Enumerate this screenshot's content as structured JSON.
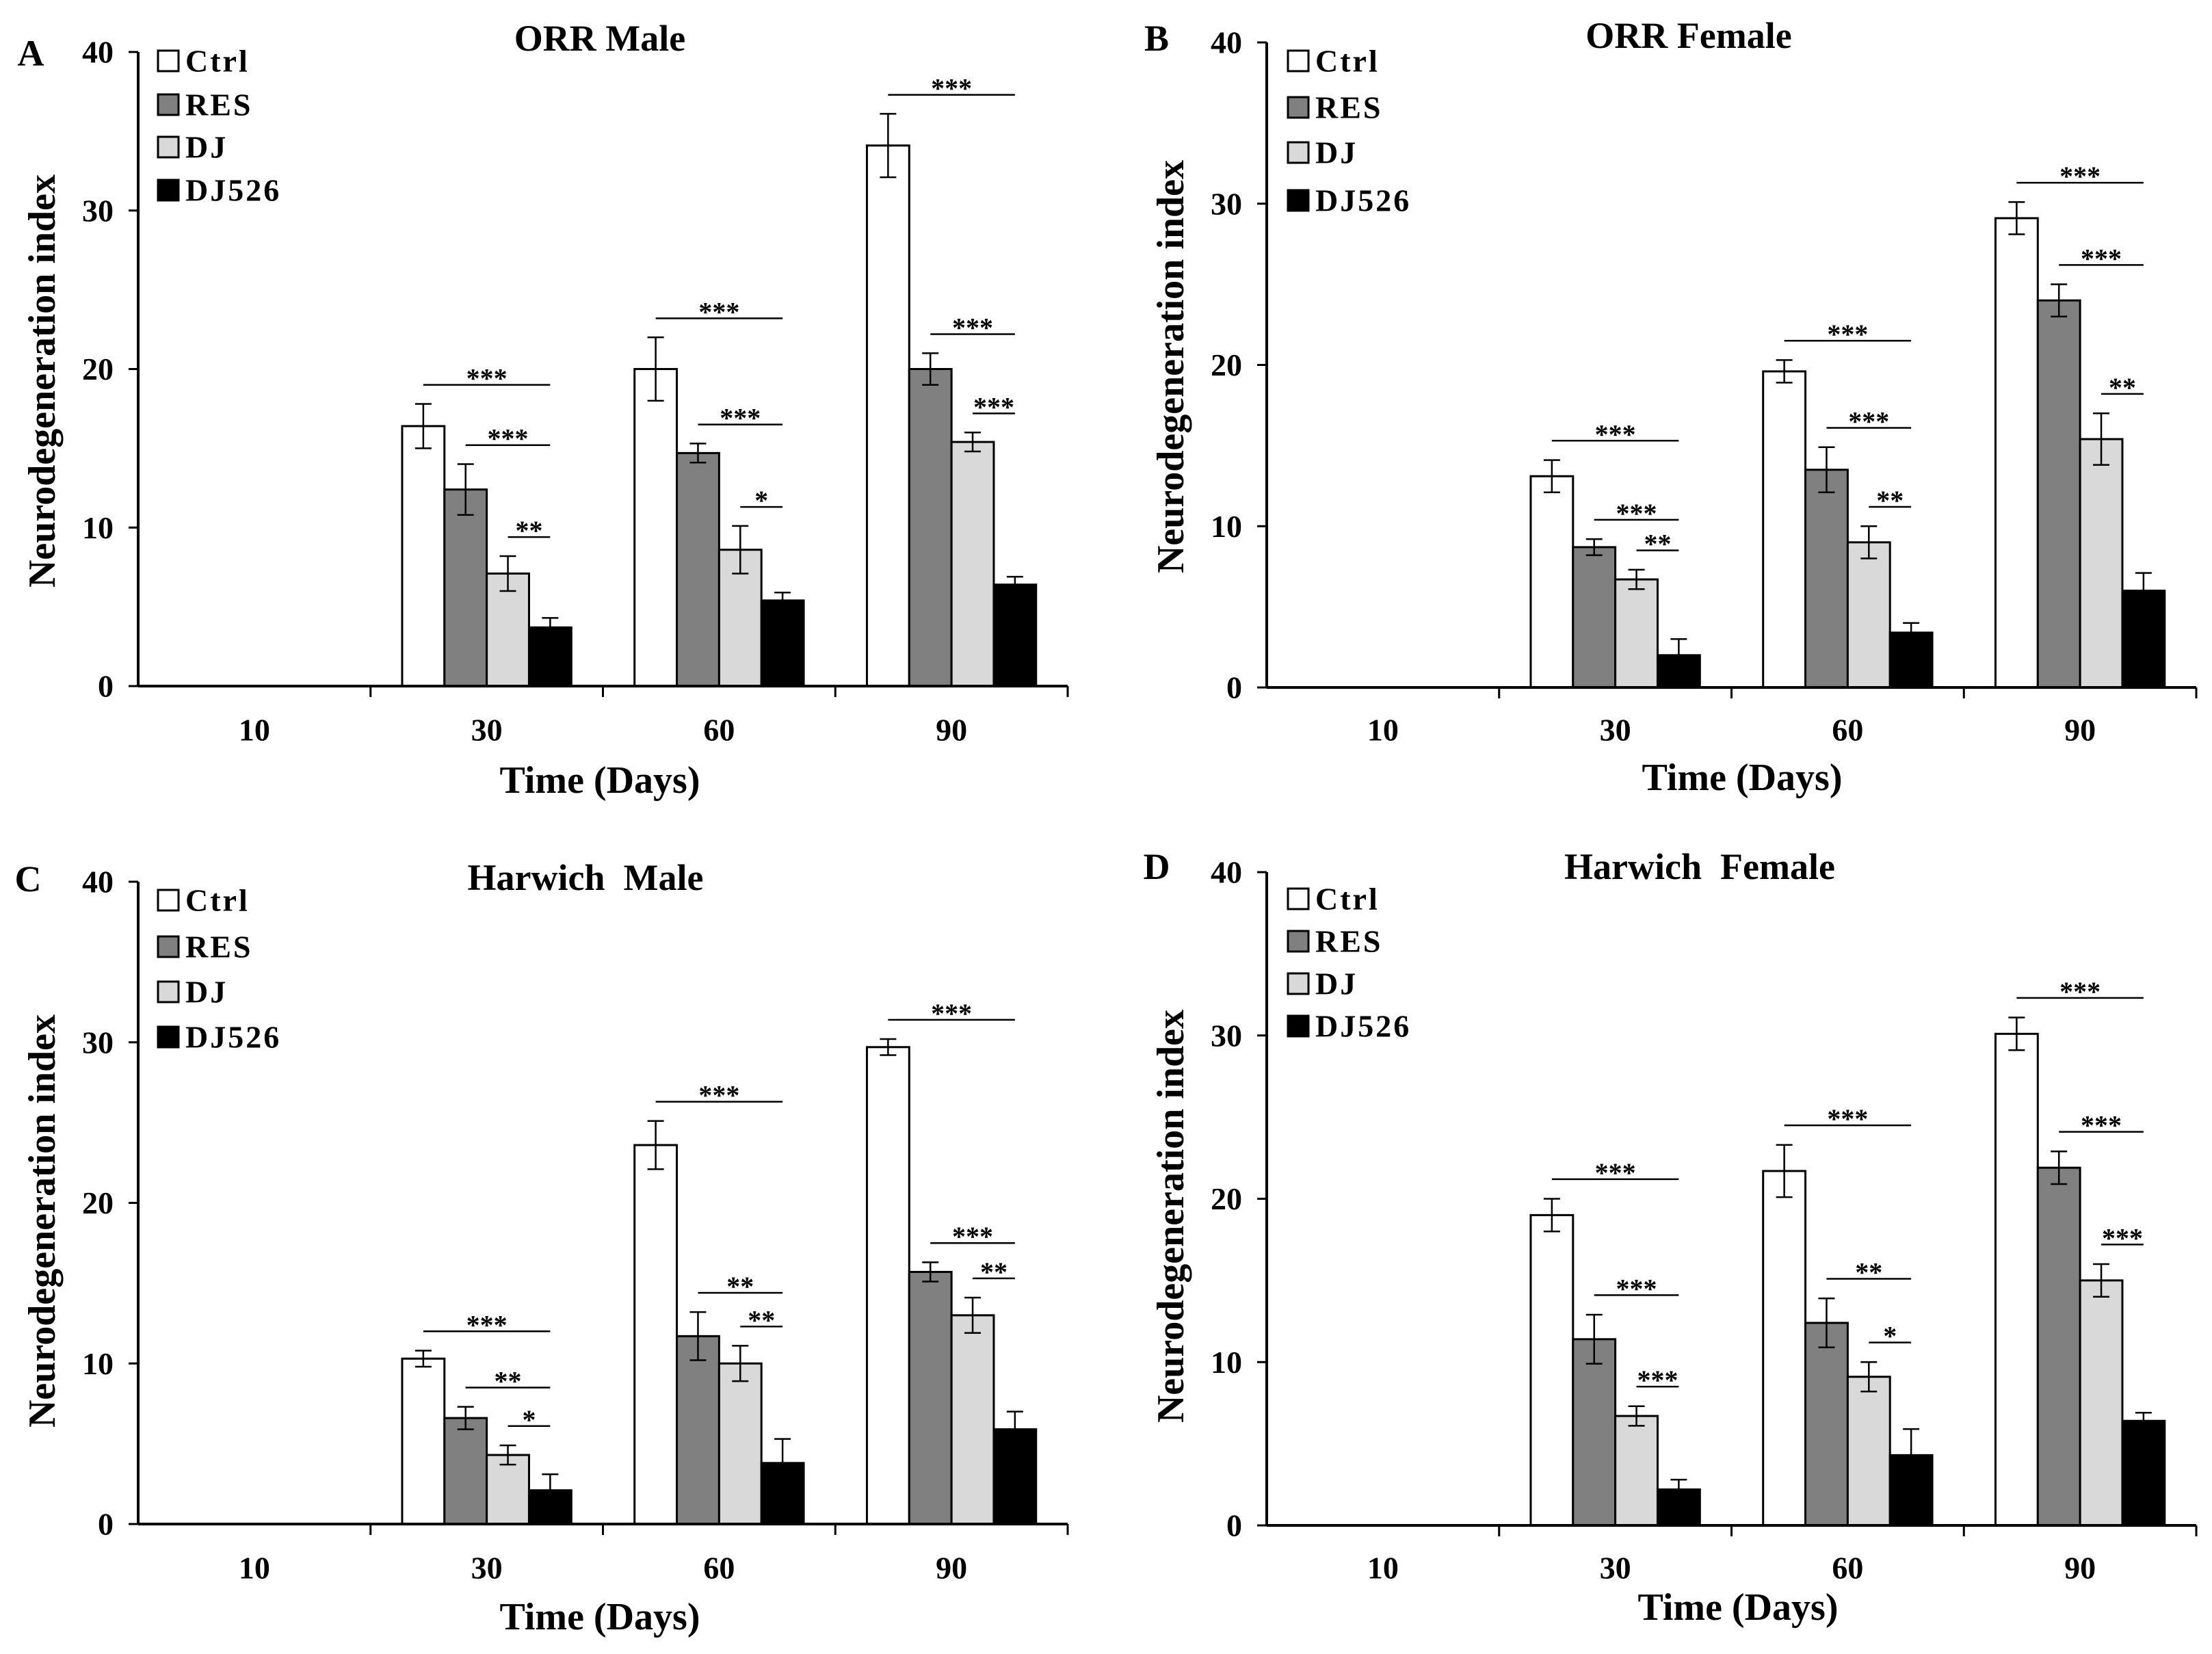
{
  "chart_data": [
    {
      "panel": "A",
      "type": "bar",
      "title": "ORR Male",
      "xlabel": "Time (Days)",
      "ylabel": "Neurodegeneration index",
      "categories": [
        "10",
        "30",
        "60",
        "90"
      ],
      "ylim": [
        0,
        40
      ],
      "yticks": [
        0,
        10,
        20,
        30,
        40
      ],
      "series": [
        {
          "name": "Ctrl",
          "color": "#ffffff",
          "values": [
            0,
            16.4,
            20.0,
            34.1
          ],
          "errors": [
            0,
            1.4,
            2.0,
            2.0
          ]
        },
        {
          "name": "RES",
          "color": "#808080",
          "values": [
            0,
            12.4,
            14.7,
            20.0
          ],
          "errors": [
            0,
            1.6,
            0.6,
            1.0
          ]
        },
        {
          "name": "DJ",
          "color": "#d9d9d9",
          "values": [
            0,
            7.1,
            8.6,
            15.4
          ],
          "errors": [
            0,
            1.1,
            1.5,
            0.6
          ]
        },
        {
          "name": "DJ526",
          "color": "#000000",
          "values": [
            0,
            3.7,
            5.4,
            6.4
          ],
          "errors": [
            0,
            0.6,
            0.5,
            0.5
          ]
        }
      ],
      "significance": [
        {
          "category_index": 1,
          "from_series": 0,
          "to_series": 3,
          "label": "***"
        },
        {
          "category_index": 1,
          "from_series": 1,
          "to_series": 3,
          "label": "***"
        },
        {
          "category_index": 1,
          "from_series": 2,
          "to_series": 3,
          "label": "**"
        },
        {
          "category_index": 2,
          "from_series": 0,
          "to_series": 3,
          "label": "***"
        },
        {
          "category_index": 2,
          "from_series": 1,
          "to_series": 3,
          "label": "***"
        },
        {
          "category_index": 2,
          "from_series": 2,
          "to_series": 3,
          "label": "*"
        },
        {
          "category_index": 3,
          "from_series": 0,
          "to_series": 3,
          "label": "***"
        },
        {
          "category_index": 3,
          "from_series": 1,
          "to_series": 3,
          "label": "***"
        },
        {
          "category_index": 3,
          "from_series": 2,
          "to_series": 3,
          "label": "***"
        }
      ]
    },
    {
      "panel": "B",
      "type": "bar",
      "title": "ORR Female",
      "xlabel": "Time (Days)",
      "ylabel": "Neurodegeneration index",
      "categories": [
        "10",
        "30",
        "60",
        "90"
      ],
      "ylim": [
        0,
        40
      ],
      "yticks": [
        0,
        10,
        20,
        30,
        40
      ],
      "series": [
        {
          "name": "Ctrl",
          "color": "#ffffff",
          "values": [
            0,
            13.1,
            19.6,
            29.1
          ],
          "errors": [
            0,
            1.0,
            0.7,
            1.0
          ]
        },
        {
          "name": "RES",
          "color": "#808080",
          "values": [
            0,
            8.7,
            13.5,
            24.0
          ],
          "errors": [
            0,
            0.5,
            1.4,
            1.0
          ]
        },
        {
          "name": "DJ",
          "color": "#d9d9d9",
          "values": [
            0,
            6.7,
            9.0,
            15.4
          ],
          "errors": [
            0,
            0.6,
            1.0,
            1.6
          ]
        },
        {
          "name": "DJ526",
          "color": "#000000",
          "values": [
            0,
            2.0,
            3.4,
            6.0
          ],
          "errors": [
            0,
            1.0,
            0.6,
            1.1
          ]
        }
      ],
      "significance": [
        {
          "category_index": 1,
          "from_series": 0,
          "to_series": 3,
          "label": "***"
        },
        {
          "category_index": 1,
          "from_series": 1,
          "to_series": 3,
          "label": "***"
        },
        {
          "category_index": 1,
          "from_series": 2,
          "to_series": 3,
          "label": "**"
        },
        {
          "category_index": 2,
          "from_series": 0,
          "to_series": 3,
          "label": "***"
        },
        {
          "category_index": 2,
          "from_series": 1,
          "to_series": 3,
          "label": "***"
        },
        {
          "category_index": 2,
          "from_series": 2,
          "to_series": 3,
          "label": "**"
        },
        {
          "category_index": 3,
          "from_series": 0,
          "to_series": 3,
          "label": "***"
        },
        {
          "category_index": 3,
          "from_series": 1,
          "to_series": 3,
          "label": "***"
        },
        {
          "category_index": 3,
          "from_series": 2,
          "to_series": 3,
          "label": "**"
        }
      ]
    },
    {
      "panel": "C",
      "type": "bar",
      "title": "Harwich  Male",
      "xlabel": "Time (Days)",
      "ylabel": "Neurodegeneration index",
      "categories": [
        "10",
        "30",
        "60",
        "90"
      ],
      "ylim": [
        0,
        40
      ],
      "yticks": [
        0,
        10,
        20,
        30,
        40
      ],
      "series": [
        {
          "name": "Ctrl",
          "color": "#ffffff",
          "values": [
            0,
            10.3,
            23.6,
            29.7
          ],
          "errors": [
            0,
            0.5,
            1.5,
            0.5
          ]
        },
        {
          "name": "RES",
          "color": "#808080",
          "values": [
            0,
            6.6,
            11.7,
            15.7
          ],
          "errors": [
            0,
            0.7,
            1.5,
            0.6
          ]
        },
        {
          "name": "DJ",
          "color": "#d9d9d9",
          "values": [
            0,
            4.3,
            10.0,
            13.0
          ],
          "errors": [
            0,
            0.6,
            1.1,
            1.1
          ]
        },
        {
          "name": "DJ526",
          "color": "#000000",
          "values": [
            0,
            2.1,
            3.8,
            5.9
          ],
          "errors": [
            0,
            1.0,
            1.5,
            1.1
          ]
        }
      ],
      "significance": [
        {
          "category_index": 1,
          "from_series": 0,
          "to_series": 3,
          "label": "***"
        },
        {
          "category_index": 1,
          "from_series": 1,
          "to_series": 3,
          "label": "**"
        },
        {
          "category_index": 1,
          "from_series": 2,
          "to_series": 3,
          "label": "*"
        },
        {
          "category_index": 2,
          "from_series": 0,
          "to_series": 3,
          "label": "***"
        },
        {
          "category_index": 2,
          "from_series": 1,
          "to_series": 3,
          "label": "**"
        },
        {
          "category_index": 2,
          "from_series": 2,
          "to_series": 3,
          "label": "**"
        },
        {
          "category_index": 3,
          "from_series": 0,
          "to_series": 3,
          "label": "***"
        },
        {
          "category_index": 3,
          "from_series": 1,
          "to_series": 3,
          "label": "***"
        },
        {
          "category_index": 3,
          "from_series": 2,
          "to_series": 3,
          "label": "**"
        }
      ]
    },
    {
      "panel": "D",
      "type": "bar",
      "title": "Harwich  Female",
      "xlabel": "Time (Days)",
      "ylabel": "Neurodegeneration index",
      "categories": [
        "10",
        "30",
        "60",
        "90"
      ],
      "ylim": [
        0,
        40
      ],
      "yticks": [
        0,
        10,
        20,
        30,
        40
      ],
      "series": [
        {
          "name": "Ctrl",
          "color": "#ffffff",
          "values": [
            0,
            19.0,
            21.7,
            30.1
          ],
          "errors": [
            0,
            1.0,
            1.6,
            1.0
          ]
        },
        {
          "name": "RES",
          "color": "#808080",
          "values": [
            0,
            11.4,
            12.4,
            21.9
          ],
          "errors": [
            0,
            1.5,
            1.5,
            1.0
          ]
        },
        {
          "name": "DJ",
          "color": "#d9d9d9",
          "values": [
            0,
            6.7,
            9.1,
            15.0
          ],
          "errors": [
            0,
            0.6,
            0.9,
            1.0
          ]
        },
        {
          "name": "DJ526",
          "color": "#000000",
          "values": [
            0,
            2.2,
            4.3,
            6.4
          ],
          "errors": [
            0,
            0.6,
            1.6,
            0.5
          ]
        }
      ],
      "significance": [
        {
          "category_index": 1,
          "from_series": 0,
          "to_series": 3,
          "label": "***"
        },
        {
          "category_index": 1,
          "from_series": 1,
          "to_series": 3,
          "label": "***"
        },
        {
          "category_index": 1,
          "from_series": 2,
          "to_series": 3,
          "label": "***"
        },
        {
          "category_index": 2,
          "from_series": 0,
          "to_series": 3,
          "label": "***"
        },
        {
          "category_index": 2,
          "from_series": 1,
          "to_series": 3,
          "label": "**"
        },
        {
          "category_index": 2,
          "from_series": 2,
          "to_series": 3,
          "label": "*"
        },
        {
          "category_index": 3,
          "from_series": 0,
          "to_series": 3,
          "label": "***"
        },
        {
          "category_index": 3,
          "from_series": 1,
          "to_series": 3,
          "label": "***"
        },
        {
          "category_index": 3,
          "from_series": 2,
          "to_series": 3,
          "label": "***"
        }
      ]
    }
  ]
}
